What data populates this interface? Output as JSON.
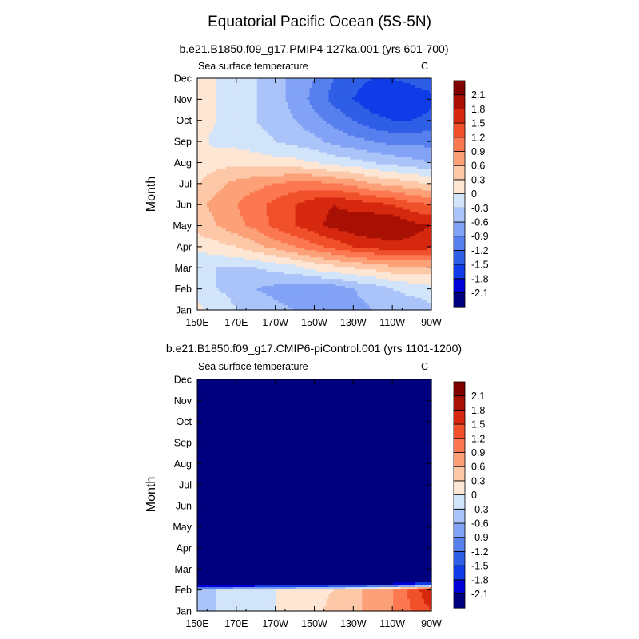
{
  "title": "Equatorial Pacific Ocean (5S-5N)",
  "colors": [
    "#00007f",
    "#0000d6",
    "#0f3ce6",
    "#2f5ee6",
    "#577fee",
    "#82a2f6",
    "#aac4fa",
    "#d2e4fa",
    "#fde6d4",
    "#fcc8a8",
    "#fca078",
    "#fc7850",
    "#f0502a",
    "#d6280e",
    "#a81004",
    "#7f0000"
  ],
  "levels": [
    -2.1,
    -1.8,
    -1.5,
    -1.2,
    -0.9,
    -0.6,
    -0.3,
    0,
    0.3,
    0.6,
    0.9,
    1.2,
    1.5,
    1.8,
    2.1
  ],
  "months": [
    "Jan",
    "Feb",
    "Mar",
    "Apr",
    "May",
    "Jun",
    "Jul",
    "Aug",
    "Sep",
    "Oct",
    "Nov",
    "Dec"
  ],
  "lon_labels": [
    "150E",
    "170E",
    "170W",
    "150W",
    "130W",
    "110W",
    "90W"
  ],
  "chart_data": [
    {
      "type": "heatmap",
      "title": "b.e21.B1850.f09_g17.PMIP4-127ka.001 (yrs 601-700)",
      "left_label": "Sea surface temperature",
      "units": "C",
      "ylabel": "Month",
      "x": [
        150,
        160,
        170,
        180,
        190,
        200,
        210,
        220,
        230,
        240,
        250,
        260,
        270
      ],
      "y": [
        "Jan",
        "Feb",
        "Mar",
        "Apr",
        "May",
        "Jun",
        "Jul",
        "Aug",
        "Sep",
        "Oct",
        "Nov",
        "Dec"
      ],
      "z": [
        [
          0.1,
          -0.1,
          -0.3,
          -0.4,
          -0.5,
          -0.6,
          -0.7,
          -0.7,
          -0.7,
          -0.6,
          -0.5,
          -0.5,
          -0.4
        ],
        [
          -0.2,
          -0.3,
          -0.4,
          -0.6,
          -0.7,
          -0.8,
          -0.8,
          -0.8,
          -0.6,
          -0.5,
          -0.3,
          -0.2,
          -0.1
        ],
        [
          -0.3,
          -0.3,
          -0.3,
          -0.3,
          -0.2,
          -0.1,
          0.1,
          0.2,
          0.3,
          0.4,
          0.5,
          0.5,
          0.5
        ],
        [
          0.1,
          0.2,
          0.3,
          0.5,
          0.7,
          0.9,
          1.1,
          1.3,
          1.5,
          1.6,
          1.7,
          1.7,
          1.6
        ],
        [
          0.4,
          0.6,
          0.8,
          1.0,
          1.3,
          1.5,
          1.7,
          1.9,
          2.0,
          2.1,
          2.1,
          1.9,
          1.8
        ],
        [
          0.5,
          0.7,
          0.9,
          1.1,
          1.3,
          1.5,
          1.7,
          1.8,
          1.7,
          1.6,
          1.5,
          1.3,
          1.2
        ],
        [
          0.3,
          0.5,
          0.7,
          0.8,
          0.9,
          1.0,
          1.0,
          0.9,
          0.8,
          0.6,
          0.5,
          0.4,
          0.3
        ],
        [
          0.1,
          0.2,
          0.2,
          0.2,
          0.1,
          0.1,
          0.0,
          -0.1,
          -0.2,
          -0.3,
          -0.4,
          -0.5,
          -0.6
        ],
        [
          0.1,
          -0.1,
          -0.1,
          -0.2,
          -0.3,
          -0.4,
          -0.5,
          -0.7,
          -0.8,
          -0.9,
          -1.0,
          -1.0,
          -1.0
        ],
        [
          0.2,
          0.0,
          -0.1,
          -0.3,
          -0.4,
          -0.6,
          -0.8,
          -1.0,
          -1.2,
          -1.4,
          -1.5,
          -1.5,
          -1.4
        ],
        [
          0.2,
          0.0,
          -0.1,
          -0.3,
          -0.5,
          -0.7,
          -1.0,
          -1.3,
          -1.5,
          -1.7,
          -1.8,
          -1.7,
          -1.6
        ],
        [
          0.1,
          0.0,
          -0.1,
          -0.3,
          -0.5,
          -0.7,
          -0.9,
          -1.2,
          -1.4,
          -1.5,
          -1.5,
          -1.4,
          -1.3
        ]
      ]
    },
    {
      "type": "heatmap",
      "title": "b.e21.B1850.f09_g17.CMIP6-piControl.001 (yrs 1101-1200)",
      "left_label": "Sea surface temperature",
      "units": "C",
      "ylabel": "Month",
      "x": [
        150,
        160,
        170,
        180,
        190,
        200,
        210,
        220,
        230,
        240,
        250,
        260,
        270
      ],
      "y": [
        "Jan",
        "Feb",
        "Mar",
        "Apr",
        "May",
        "Jun",
        "Jul",
        "Aug",
        "Sep",
        "Oct",
        "Nov",
        "Dec"
      ],
      "z": [
        [
          -0.4,
          -0.3,
          -0.2,
          -0.1,
          0.0,
          0.1,
          0.2,
          0.4,
          0.5,
          0.7,
          0.9,
          1.2,
          1.5
        ],
        [
          -0.3,
          -0.3,
          -0.2,
          -0.1,
          0.0,
          0.1,
          0.2,
          0.3,
          0.5,
          0.7,
          0.9,
          1.3,
          1.8
        ],
        [
          -9,
          -9,
          -9,
          -9,
          -9,
          -9,
          -9,
          -9,
          -9,
          -9,
          -9,
          -9,
          -9
        ],
        [
          -9,
          -9,
          -9,
          -9,
          -9,
          -9,
          -9,
          -9,
          -9,
          -9,
          -9,
          -9,
          -9
        ],
        [
          -9,
          -9,
          -9,
          -9,
          -9,
          -9,
          -9,
          -9,
          -9,
          -9,
          -9,
          -9,
          -9
        ],
        [
          -9,
          -9,
          -9,
          -9,
          -9,
          -9,
          -9,
          -9,
          -9,
          -9,
          -9,
          -9,
          -9
        ],
        [
          -9,
          -9,
          -9,
          -9,
          -9,
          -9,
          -9,
          -9,
          -9,
          -9,
          -9,
          -9,
          -9
        ],
        [
          -9,
          -9,
          -9,
          -9,
          -9,
          -9,
          -9,
          -9,
          -9,
          -9,
          -9,
          -9,
          -9
        ],
        [
          -9,
          -9,
          -9,
          -9,
          -9,
          -9,
          -9,
          -9,
          -9,
          -9,
          -9,
          -9,
          -9
        ],
        [
          -9,
          -9,
          -9,
          -9,
          -9,
          -9,
          -9,
          -9,
          -9,
          -9,
          -9,
          -9,
          -9
        ],
        [
          -9,
          -9,
          -9,
          -9,
          -9,
          -9,
          -9,
          -9,
          -9,
          -9,
          -9,
          -9,
          -9
        ],
        [
          -9,
          -9,
          -9,
          -9,
          -9,
          -9,
          -9,
          -9,
          -9,
          -9,
          -9,
          -9,
          -9
        ]
      ]
    }
  ]
}
